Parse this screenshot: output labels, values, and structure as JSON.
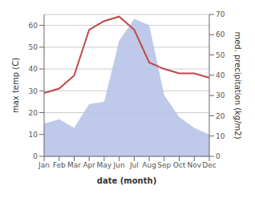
{
  "chart_data": {
    "type": "line",
    "xlabel": "date (month)",
    "ylabel": "max temp (C)",
    "y2label": "med. precipitation (kg/m2)",
    "categories": [
      "Jan",
      "Feb",
      "Mar",
      "Apr",
      "May",
      "Jun",
      "Jul",
      "Aug",
      "Sep",
      "Oct",
      "Nov",
      "Dec"
    ],
    "series": [
      {
        "type": "area",
        "color": "#b8c4e8",
        "values": [
          15,
          17,
          13,
          24,
          25,
          53,
          63,
          60,
          28,
          18,
          13,
          10
        ]
      },
      {
        "type": "line",
        "color": "#c0474a",
        "values": [
          29,
          31,
          37,
          58,
          62,
          64,
          58,
          43,
          40,
          38,
          38,
          36
        ]
      }
    ],
    "ylim": [
      0,
      65
    ],
    "yticks": [
      0,
      10,
      20,
      30,
      40,
      50,
      60
    ],
    "y2lim": [
      0,
      70
    ],
    "y2ticks": [
      0,
      10,
      20,
      30,
      40,
      50,
      60,
      70
    ],
    "grid": true
  }
}
